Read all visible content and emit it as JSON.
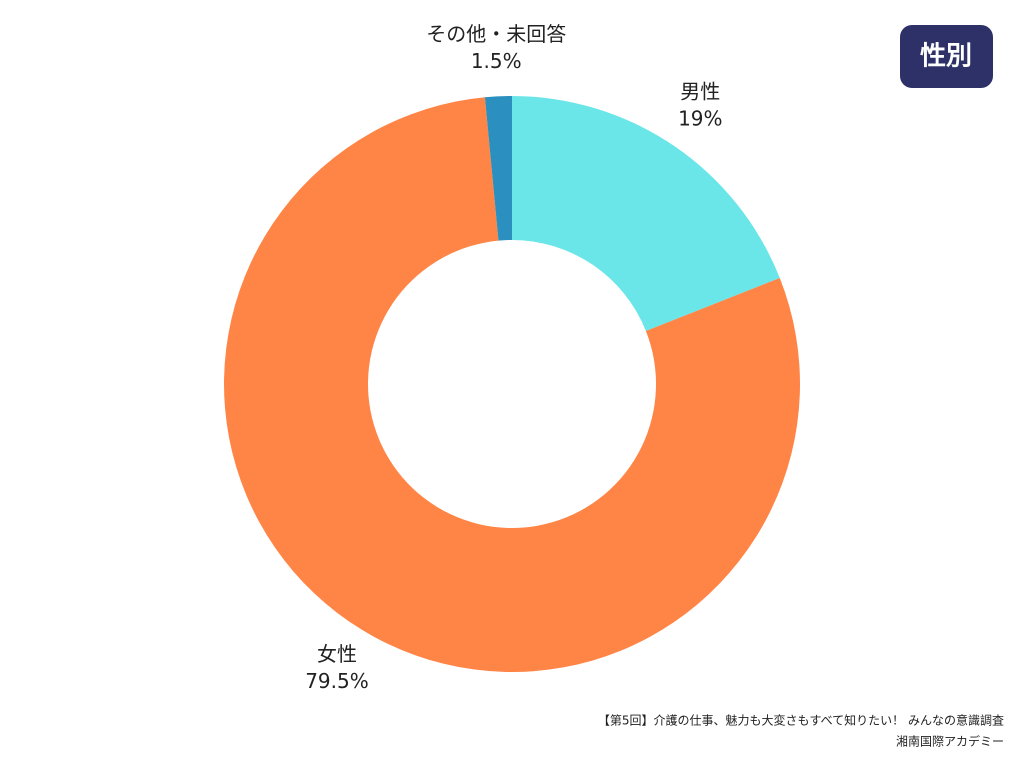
{
  "chart_data": {
    "type": "donut",
    "title": "性別",
    "categories": [
      "男性",
      "女性",
      "その他・未回答"
    ],
    "values": [
      19,
      79.5,
      1.5
    ],
    "value_labels": [
      "19%",
      "79.5%",
      "1.5%"
    ],
    "colors": [
      "#6ae5e8",
      "#ff8547",
      "#2b8fbf"
    ]
  },
  "footer": [
    "【第5回】介護の仕事、魅力も大変さもすべて知りたい！ みんなの意識調査",
    "湘南国際アカデミー"
  ]
}
